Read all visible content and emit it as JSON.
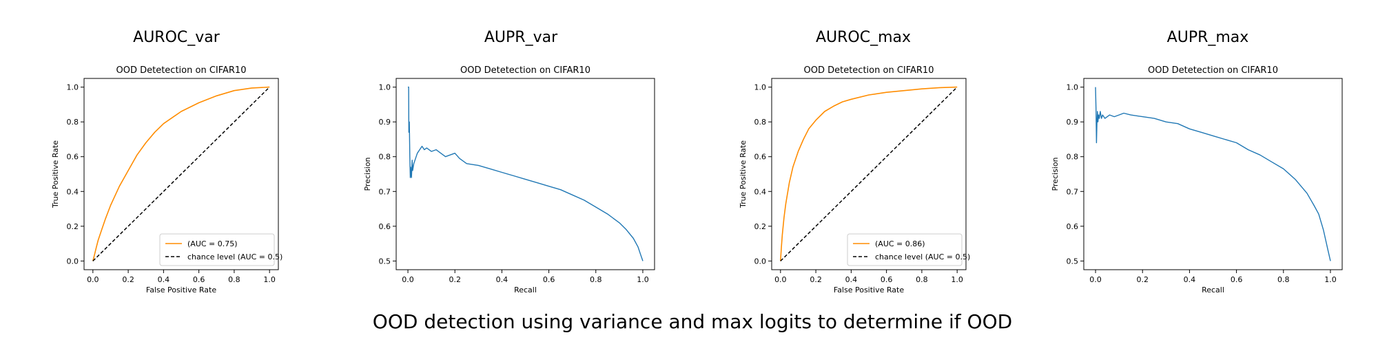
{
  "caption": "OOD detection using variance and max logits to determine if OOD",
  "colors": {
    "roc": "#ff8c00",
    "pr": "#1f77b4",
    "chance": "#000000",
    "axes": "#000000"
  },
  "chart_data": [
    {
      "panel_title": "AUROC_var",
      "type": "line",
      "title": "OOD Detetection on CIFAR10",
      "xlabel": "False Positive Rate",
      "ylabel": "True Positive Rate",
      "xlim": [
        -0.05,
        1.05
      ],
      "ylim": [
        -0.05,
        1.05
      ],
      "xticks": [
        "0.0",
        "0.2",
        "0.4",
        "0.6",
        "0.8",
        "1.0"
      ],
      "yticks": [
        "0.0",
        "0.2",
        "0.4",
        "0.6",
        "0.8",
        "1.0"
      ],
      "legend_position": "lower-right",
      "series": [
        {
          "name": "(AUC = 0.75)",
          "style": "roc",
          "x": [
            0,
            0.01,
            0.02,
            0.03,
            0.05,
            0.07,
            0.1,
            0.15,
            0.2,
            0.25,
            0.3,
            0.35,
            0.4,
            0.5,
            0.6,
            0.7,
            0.8,
            0.9,
            1.0
          ],
          "y": [
            0,
            0.04,
            0.08,
            0.12,
            0.18,
            0.24,
            0.32,
            0.43,
            0.52,
            0.61,
            0.68,
            0.74,
            0.79,
            0.86,
            0.91,
            0.95,
            0.98,
            0.995,
            1.0
          ]
        },
        {
          "name": "chance level (AUC = 0.5)",
          "style": "chance",
          "x": [
            0,
            1
          ],
          "y": [
            0,
            1
          ]
        }
      ]
    },
    {
      "panel_title": "AUPR_var",
      "type": "line",
      "title": "OOD Detetection on CIFAR10",
      "xlabel": "Recall",
      "ylabel": "Precision",
      "xlim": [
        -0.05,
        1.05
      ],
      "ylim": [
        0.475,
        1.025
      ],
      "xticks": [
        "0.0",
        "0.2",
        "0.4",
        "0.6",
        "0.8",
        "1.0"
      ],
      "yticks": [
        "0.5",
        "0.6",
        "0.7",
        "0.8",
        "0.9",
        "1.0"
      ],
      "series": [
        {
          "name": "",
          "style": "pr",
          "x": [
            0.0,
            0.003,
            0.004,
            0.006,
            0.008,
            0.01,
            0.012,
            0.015,
            0.018,
            0.02,
            0.025,
            0.03,
            0.035,
            0.04,
            0.05,
            0.06,
            0.07,
            0.08,
            0.1,
            0.12,
            0.14,
            0.16,
            0.18,
            0.2,
            0.22,
            0.25,
            0.3,
            0.35,
            0.4,
            0.45,
            0.5,
            0.55,
            0.6,
            0.65,
            0.7,
            0.75,
            0.8,
            0.85,
            0.9,
            0.93,
            0.96,
            0.98,
            0.99,
            1.0
          ],
          "y": [
            1.0,
            1.0,
            0.87,
            0.9,
            0.8,
            0.74,
            0.77,
            0.74,
            0.79,
            0.76,
            0.78,
            0.79,
            0.8,
            0.81,
            0.82,
            0.83,
            0.82,
            0.825,
            0.815,
            0.82,
            0.81,
            0.8,
            0.805,
            0.81,
            0.795,
            0.78,
            0.775,
            0.765,
            0.755,
            0.745,
            0.735,
            0.725,
            0.715,
            0.705,
            0.69,
            0.675,
            0.655,
            0.635,
            0.61,
            0.59,
            0.565,
            0.54,
            0.52,
            0.5
          ]
        }
      ]
    },
    {
      "panel_title": "AUROC_max",
      "type": "line",
      "title": "OOD Detetection on CIFAR10",
      "xlabel": "False Positive Rate",
      "ylabel": "True Positive Rate",
      "xlim": [
        -0.05,
        1.05
      ],
      "ylim": [
        -0.05,
        1.05
      ],
      "xticks": [
        "0.0",
        "0.2",
        "0.4",
        "0.6",
        "0.8",
        "1.0"
      ],
      "yticks": [
        "0.0",
        "0.2",
        "0.4",
        "0.6",
        "0.8",
        "1.0"
      ],
      "legend_position": "lower-right",
      "series": [
        {
          "name": "(AUC = 0.86)",
          "style": "roc",
          "x": [
            0,
            0.005,
            0.01,
            0.02,
            0.03,
            0.05,
            0.07,
            0.1,
            0.13,
            0.16,
            0.2,
            0.25,
            0.3,
            0.35,
            0.4,
            0.5,
            0.6,
            0.7,
            0.8,
            0.9,
            1.0
          ],
          "y": [
            0,
            0.08,
            0.15,
            0.25,
            0.33,
            0.45,
            0.54,
            0.63,
            0.7,
            0.76,
            0.81,
            0.86,
            0.89,
            0.915,
            0.93,
            0.955,
            0.97,
            0.98,
            0.99,
            0.997,
            1.0
          ]
        },
        {
          "name": "chance level (AUC = 0.5)",
          "style": "chance",
          "x": [
            0,
            1
          ],
          "y": [
            0,
            1
          ]
        }
      ]
    },
    {
      "panel_title": "AUPR_max",
      "type": "line",
      "title": "OOD Detetection on CIFAR10",
      "xlabel": "Recall",
      "ylabel": "Precision",
      "xlim": [
        -0.05,
        1.05
      ],
      "ylim": [
        0.475,
        1.025
      ],
      "xticks": [
        "0.0",
        "0.2",
        "0.4",
        "0.6",
        "0.8",
        "1.0"
      ],
      "yticks": [
        "0.5",
        "0.6",
        "0.7",
        "0.8",
        "0.9",
        "1.0"
      ],
      "series": [
        {
          "name": "",
          "style": "pr",
          "x": [
            0.0,
            0.002,
            0.004,
            0.006,
            0.008,
            0.01,
            0.013,
            0.016,
            0.02,
            0.025,
            0.03,
            0.04,
            0.05,
            0.06,
            0.08,
            0.1,
            0.12,
            0.15,
            0.2,
            0.25,
            0.3,
            0.35,
            0.4,
            0.45,
            0.5,
            0.55,
            0.6,
            0.65,
            0.7,
            0.75,
            0.8,
            0.85,
            0.9,
            0.93,
            0.95,
            0.97,
            0.98,
            0.99,
            1.0
          ],
          "y": [
            1.0,
            0.94,
            0.84,
            0.9,
            0.93,
            0.9,
            0.92,
            0.91,
            0.93,
            0.91,
            0.92,
            0.91,
            0.915,
            0.92,
            0.915,
            0.92,
            0.925,
            0.92,
            0.915,
            0.91,
            0.9,
            0.895,
            0.88,
            0.87,
            0.86,
            0.85,
            0.84,
            0.82,
            0.805,
            0.785,
            0.765,
            0.735,
            0.695,
            0.66,
            0.635,
            0.59,
            0.56,
            0.53,
            0.5
          ]
        }
      ]
    }
  ]
}
